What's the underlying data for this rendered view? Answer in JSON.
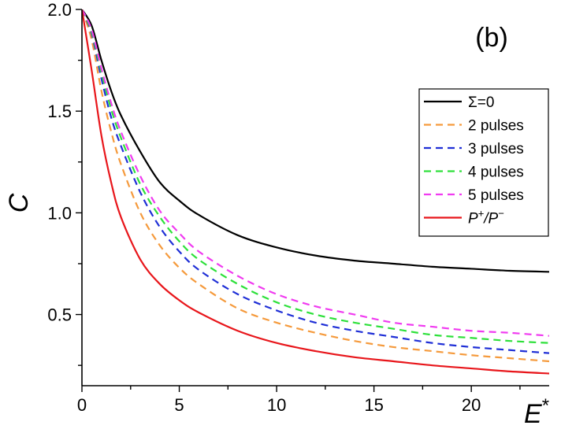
{
  "chart_data": {
    "type": "line",
    "panel_label": "(b)",
    "xlabel": "E",
    "xlabel_sup": "*",
    "ylabel": "C",
    "xlim": [
      0,
      24
    ],
    "ylim": [
      0.15,
      2.0
    ],
    "xticks": [
      0,
      5,
      10,
      15,
      20
    ],
    "yticks": [
      0.5,
      1.0,
      1.5,
      2.0
    ],
    "grid": false,
    "legend_position": "right",
    "series": [
      {
        "name": "Σ=0",
        "color": "#000000",
        "dash": "solid",
        "x": [
          0,
          0.5,
          1,
          1.5,
          2,
          3,
          4,
          5,
          6,
          8,
          10,
          12,
          14,
          16,
          18,
          20,
          22,
          24
        ],
        "y": [
          2.0,
          1.92,
          1.75,
          1.6,
          1.48,
          1.3,
          1.15,
          1.06,
          0.99,
          0.89,
          0.83,
          0.79,
          0.765,
          0.75,
          0.735,
          0.725,
          0.715,
          0.71
        ]
      },
      {
        "name": "2 pulses",
        "color": "#f59a3c",
        "dash": "dashed",
        "x": [
          0,
          0.5,
          1,
          1.5,
          2,
          3,
          4,
          5,
          6,
          8,
          10,
          12,
          14,
          16,
          18,
          20,
          22,
          24
        ],
        "y": [
          2.0,
          1.85,
          1.6,
          1.4,
          1.24,
          1.0,
          0.84,
          0.73,
          0.65,
          0.53,
          0.46,
          0.41,
          0.37,
          0.34,
          0.32,
          0.3,
          0.285,
          0.27
        ]
      },
      {
        "name": "3 pulses",
        "color": "#1f2fd6",
        "dash": "dashed",
        "x": [
          0,
          0.5,
          1,
          1.5,
          2,
          3,
          4,
          5,
          6,
          8,
          10,
          12,
          14,
          16,
          18,
          20,
          22,
          24
        ],
        "y": [
          2.0,
          1.88,
          1.66,
          1.47,
          1.33,
          1.1,
          0.93,
          0.81,
          0.72,
          0.6,
          0.52,
          0.46,
          0.42,
          0.39,
          0.36,
          0.34,
          0.325,
          0.31
        ]
      },
      {
        "name": "4 pulses",
        "color": "#2de03a",
        "dash": "dashed",
        "x": [
          0,
          0.5,
          1,
          1.5,
          2,
          3,
          4,
          5,
          6,
          8,
          10,
          12,
          14,
          16,
          18,
          20,
          22,
          24
        ],
        "y": [
          2.0,
          1.89,
          1.69,
          1.51,
          1.37,
          1.14,
          0.98,
          0.86,
          0.77,
          0.65,
          0.56,
          0.5,
          0.46,
          0.43,
          0.4,
          0.385,
          0.37,
          0.36
        ]
      },
      {
        "name": "5 pulses",
        "color": "#f03bf0",
        "dash": "dashed",
        "x": [
          0,
          0.5,
          1,
          1.5,
          2,
          3,
          4,
          5,
          6,
          8,
          10,
          12,
          14,
          16,
          18,
          20,
          22,
          24
        ],
        "y": [
          2.0,
          1.9,
          1.71,
          1.54,
          1.4,
          1.18,
          1.01,
          0.9,
          0.81,
          0.69,
          0.6,
          0.54,
          0.5,
          0.46,
          0.44,
          0.42,
          0.41,
          0.395
        ]
      },
      {
        "name": "P+/P−",
        "color": "#e8161b",
        "dash": "solid",
        "label_parts": [
          "P",
          "+",
          "/P",
          "−"
        ],
        "x": [
          0,
          0.5,
          1,
          1.5,
          2,
          3,
          4,
          5,
          6,
          8,
          10,
          12,
          14,
          16,
          18,
          20,
          22,
          24
        ],
        "y": [
          2.0,
          1.7,
          1.38,
          1.15,
          0.98,
          0.77,
          0.65,
          0.57,
          0.51,
          0.42,
          0.36,
          0.32,
          0.29,
          0.27,
          0.25,
          0.235,
          0.22,
          0.21
        ]
      }
    ]
  }
}
